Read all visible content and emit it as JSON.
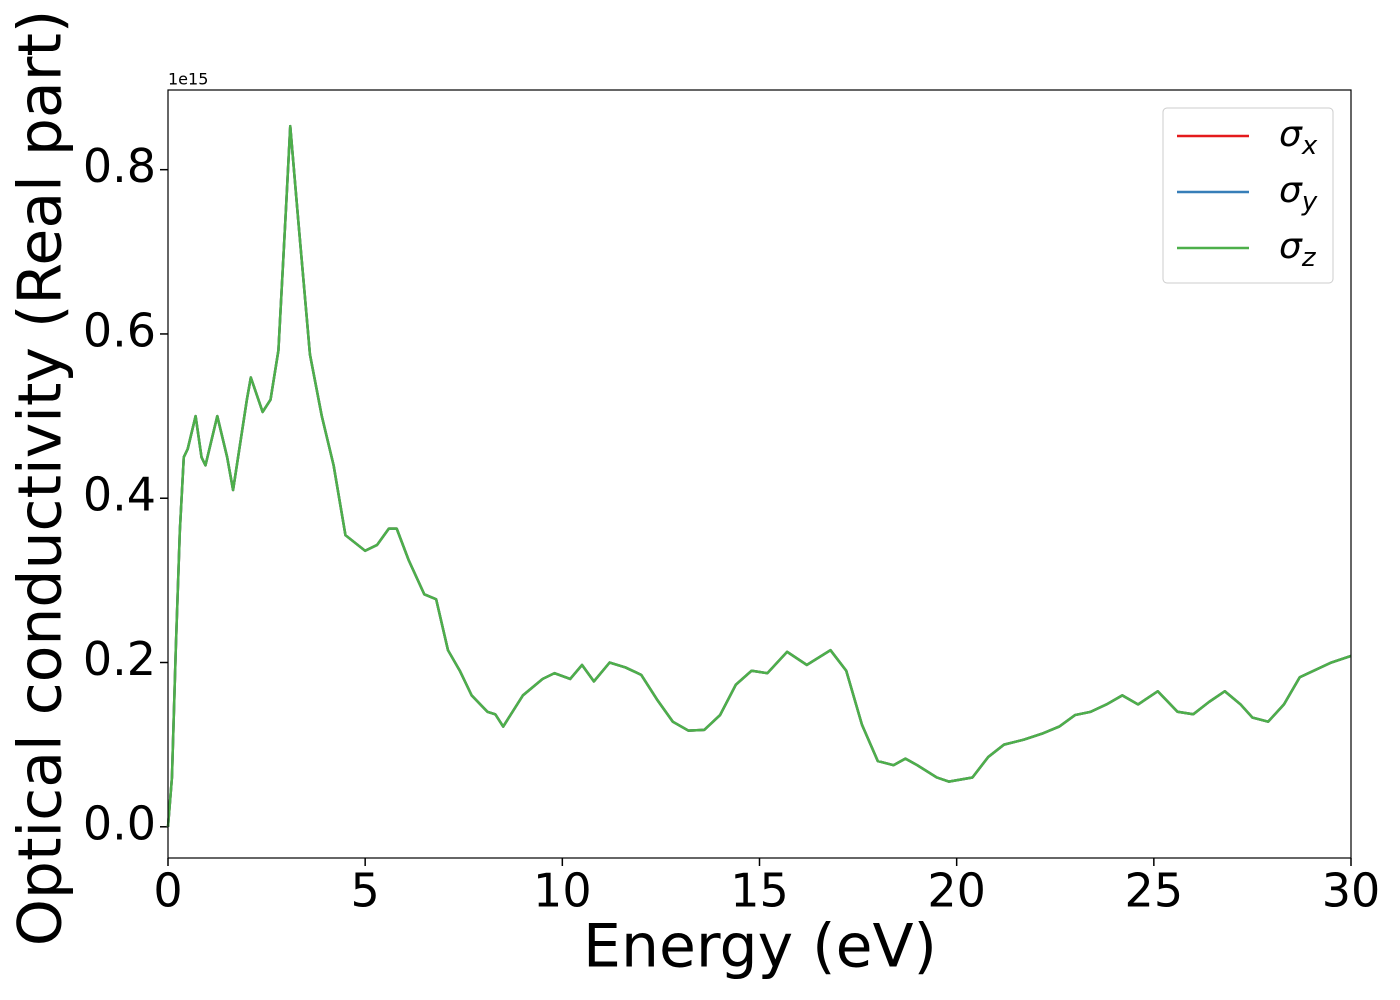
{
  "chart_data": {
    "type": "line",
    "x_label": "Energy (eV)",
    "y_label": "Optical conductivity (Real part)",
    "y_offset_label": "1e15",
    "x": [
      0,
      0.1,
      0.2,
      0.3,
      0.4,
      0.5,
      0.7,
      0.85,
      0.95,
      1.25,
      1.5,
      1.65,
      2.0,
      2.1,
      2.4,
      2.6,
      2.8,
      3.0,
      3.1,
      3.3,
      3.6,
      3.9,
      4.2,
      4.5,
      5.0,
      5.3,
      5.6,
      5.8,
      6.1,
      6.5,
      6.8,
      7.1,
      7.4,
      7.7,
      8.1,
      8.3,
      8.5,
      9.0,
      9.5,
      9.8,
      10.2,
      10.5,
      10.8,
      11.2,
      11.6,
      12.0,
      12.4,
      12.8,
      13.2,
      13.6,
      14.0,
      14.4,
      14.8,
      15.2,
      15.7,
      16.2,
      16.8,
      17.2,
      17.6,
      18.0,
      18.4,
      18.7,
      19.0,
      19.5,
      19.8,
      20.4,
      20.8,
      21.2,
      21.7,
      22.2,
      22.6,
      23.0,
      23.4,
      23.8,
      24.2,
      24.6,
      25.1,
      25.6,
      26.0,
      26.4,
      26.8,
      27.2,
      27.5,
      27.9,
      28.3,
      28.7,
      29.1,
      29.5,
      30
    ],
    "series": [
      {
        "name": "σx",
        "color": "#e41a1c",
        "values": [
          0,
          0.06,
          0.22,
          0.36,
          0.45,
          0.46,
          0.5,
          0.45,
          0.44,
          0.5,
          0.45,
          0.41,
          0.52,
          0.547,
          0.505,
          0.52,
          0.58,
          0.76,
          0.853,
          0.74,
          0.575,
          0.5,
          0.44,
          0.355,
          0.336,
          0.343,
          0.363,
          0.363,
          0.325,
          0.283,
          0.277,
          0.215,
          0.19,
          0.16,
          0.14,
          0.137,
          0.122,
          0.16,
          0.18,
          0.187,
          0.18,
          0.197,
          0.177,
          0.2,
          0.194,
          0.185,
          0.155,
          0.128,
          0.117,
          0.118,
          0.136,
          0.173,
          0.19,
          0.187,
          0.213,
          0.197,
          0.215,
          0.19,
          0.124,
          0.08,
          0.075,
          0.083,
          0.075,
          0.06,
          0.055,
          0.06,
          0.085,
          0.1,
          0.106,
          0.114,
          0.122,
          0.136,
          0.14,
          0.149,
          0.16,
          0.149,
          0.165,
          0.14,
          0.137,
          0.152,
          0.165,
          0.149,
          0.133,
          0.128,
          0.149,
          0.182,
          0.191,
          0.2,
          0.208
        ]
      },
      {
        "name": "σy",
        "color": "#377eb8",
        "values": [
          0,
          0.06,
          0.22,
          0.36,
          0.45,
          0.46,
          0.5,
          0.45,
          0.44,
          0.5,
          0.45,
          0.41,
          0.52,
          0.547,
          0.505,
          0.52,
          0.58,
          0.76,
          0.853,
          0.74,
          0.575,
          0.5,
          0.44,
          0.355,
          0.336,
          0.343,
          0.363,
          0.363,
          0.325,
          0.283,
          0.277,
          0.215,
          0.19,
          0.16,
          0.14,
          0.137,
          0.122,
          0.16,
          0.18,
          0.187,
          0.18,
          0.197,
          0.177,
          0.2,
          0.194,
          0.185,
          0.155,
          0.128,
          0.117,
          0.118,
          0.136,
          0.173,
          0.19,
          0.187,
          0.213,
          0.197,
          0.215,
          0.19,
          0.124,
          0.08,
          0.075,
          0.083,
          0.075,
          0.06,
          0.055,
          0.06,
          0.085,
          0.1,
          0.106,
          0.114,
          0.122,
          0.136,
          0.14,
          0.149,
          0.16,
          0.149,
          0.165,
          0.14,
          0.137,
          0.152,
          0.165,
          0.149,
          0.133,
          0.128,
          0.149,
          0.182,
          0.191,
          0.2,
          0.208
        ]
      },
      {
        "name": "σz",
        "color": "#4daf4a",
        "values": [
          0,
          0.06,
          0.22,
          0.36,
          0.45,
          0.46,
          0.5,
          0.45,
          0.44,
          0.5,
          0.45,
          0.41,
          0.52,
          0.547,
          0.505,
          0.52,
          0.58,
          0.76,
          0.853,
          0.74,
          0.575,
          0.5,
          0.44,
          0.355,
          0.336,
          0.343,
          0.363,
          0.363,
          0.325,
          0.283,
          0.277,
          0.215,
          0.19,
          0.16,
          0.14,
          0.137,
          0.122,
          0.16,
          0.18,
          0.187,
          0.18,
          0.197,
          0.177,
          0.2,
          0.194,
          0.185,
          0.155,
          0.128,
          0.117,
          0.118,
          0.136,
          0.173,
          0.19,
          0.187,
          0.213,
          0.197,
          0.215,
          0.19,
          0.124,
          0.08,
          0.075,
          0.083,
          0.075,
          0.06,
          0.055,
          0.06,
          0.085,
          0.1,
          0.106,
          0.114,
          0.122,
          0.136,
          0.14,
          0.149,
          0.16,
          0.149,
          0.165,
          0.14,
          0.137,
          0.152,
          0.165,
          0.149,
          0.133,
          0.128,
          0.149,
          0.182,
          0.191,
          0.2,
          0.208
        ]
      }
    ],
    "xlim": [
      0,
      30
    ],
    "xticks": [
      0,
      5,
      10,
      15,
      20,
      25,
      30
    ],
    "ylim": [
      -0.038,
      0.897
    ],
    "yticks": [
      {
        "value": 0,
        "label": "0.0"
      },
      0.2,
      0.4,
      0.6,
      0.8
    ],
    "grid": false,
    "legend": "upper right"
  }
}
